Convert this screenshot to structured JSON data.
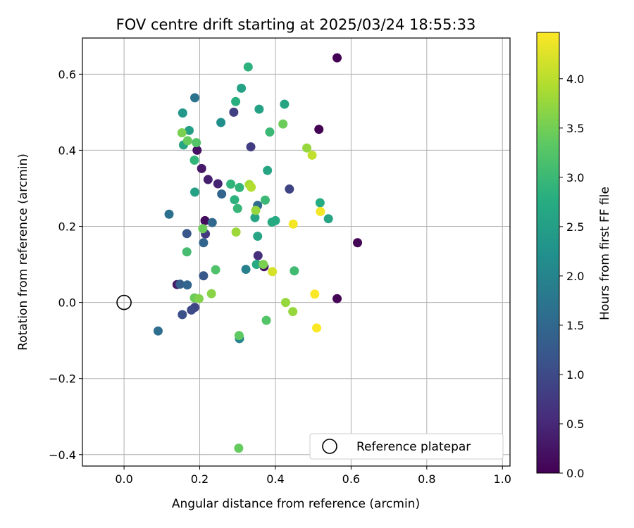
{
  "chart_data": {
    "type": "scatter",
    "title": "FOV centre drift starting at 2025/03/24 18:55:33",
    "xlabel": "Angular distance from reference (arcmin)",
    "ylabel": "Rotation from reference (arcmin)",
    "xlim": [
      -0.11,
      1.02
    ],
    "ylim": [
      -0.43,
      0.695
    ],
    "xticks": [
      0.0,
      0.2,
      0.4,
      0.6,
      0.8,
      1.0
    ],
    "xtick_labels": [
      "0.0",
      "0.2",
      "0.4",
      "0.6",
      "0.8",
      "1.0"
    ],
    "yticks": [
      -0.4,
      -0.2,
      0.0,
      0.2,
      0.4,
      0.6
    ],
    "ytick_labels": [
      "−0.4",
      "−0.2",
      "0.0",
      "0.2",
      "0.4",
      "0.6"
    ],
    "grid": true,
    "legend": {
      "position": "lower-right",
      "entries": [
        {
          "label": "Reference platepar",
          "marker": "open-circle"
        }
      ]
    },
    "reference_point": {
      "x": 0.0,
      "y": 0.0
    },
    "colorbar": {
      "label": "Hours from first FF file",
      "colormap": "viridis",
      "range": [
        0.0,
        4.47
      ],
      "ticks": [
        0.0,
        0.5,
        1.0,
        1.5,
        2.0,
        2.5,
        3.0,
        3.5,
        4.0
      ],
      "tick_labels": [
        "0.0",
        "0.5",
        "1.0",
        "1.5",
        "2.0",
        "2.5",
        "3.0",
        "3.5",
        "4.0"
      ]
    },
    "points": [
      {
        "x": 0.563,
        "y": 0.643,
        "h": 0.0
      },
      {
        "x": 0.515,
        "y": 0.455,
        "h": 0.0
      },
      {
        "x": 0.617,
        "y": 0.157,
        "h": 0.05
      },
      {
        "x": 0.563,
        "y": 0.01,
        "h": 0.05
      },
      {
        "x": 0.193,
        "y": 0.4,
        "h": 0.2
      },
      {
        "x": 0.205,
        "y": 0.352,
        "h": 0.3
      },
      {
        "x": 0.222,
        "y": 0.323,
        "h": 0.4
      },
      {
        "x": 0.248,
        "y": 0.312,
        "h": 0.45
      },
      {
        "x": 0.214,
        "y": 0.215,
        "h": 0.15
      },
      {
        "x": 0.37,
        "y": 0.094,
        "h": 0.2
      },
      {
        "x": 0.14,
        "y": 0.047,
        "h": 0.3
      },
      {
        "x": 0.354,
        "y": 0.123,
        "h": 0.6
      },
      {
        "x": 0.335,
        "y": 0.409,
        "h": 0.8
      },
      {
        "x": 0.29,
        "y": 0.5,
        "h": 0.85
      },
      {
        "x": 0.437,
        "y": 0.298,
        "h": 0.9
      },
      {
        "x": 0.215,
        "y": 0.18,
        "h": 0.75
      },
      {
        "x": 0.187,
        "y": -0.013,
        "h": 0.9
      },
      {
        "x": 0.178,
        "y": -0.02,
        "h": 1.0
      },
      {
        "x": 0.154,
        "y": -0.032,
        "h": 1.1
      },
      {
        "x": 0.166,
        "y": 0.181,
        "h": 1.2
      },
      {
        "x": 0.21,
        "y": 0.07,
        "h": 1.2
      },
      {
        "x": 0.148,
        "y": 0.048,
        "h": 1.35
      },
      {
        "x": 0.167,
        "y": 0.046,
        "h": 1.45
      },
      {
        "x": 0.258,
        "y": 0.285,
        "h": 1.45
      },
      {
        "x": 0.233,
        "y": 0.21,
        "h": 1.5
      },
      {
        "x": 0.21,
        "y": 0.157,
        "h": 1.45
      },
      {
        "x": 0.09,
        "y": -0.075,
        "h": 1.6
      },
      {
        "x": 0.119,
        "y": 0.232,
        "h": 1.65
      },
      {
        "x": 0.187,
        "y": 0.538,
        "h": 1.7
      },
      {
        "x": 0.353,
        "y": 0.255,
        "h": 1.55
      },
      {
        "x": 0.322,
        "y": 0.087,
        "h": 1.95
      },
      {
        "x": 0.305,
        "y": -0.095,
        "h": 2.0
      },
      {
        "x": 0.256,
        "y": 0.473,
        "h": 2.2
      },
      {
        "x": 0.155,
        "y": 0.498,
        "h": 2.35
      },
      {
        "x": 0.172,
        "y": 0.452,
        "h": 2.5
      },
      {
        "x": 0.157,
        "y": 0.414,
        "h": 2.6
      },
      {
        "x": 0.187,
        "y": 0.29,
        "h": 2.55
      },
      {
        "x": 0.31,
        "y": 0.563,
        "h": 2.55
      },
      {
        "x": 0.357,
        "y": 0.508,
        "h": 2.55
      },
      {
        "x": 0.424,
        "y": 0.521,
        "h": 2.6
      },
      {
        "x": 0.379,
        "y": 0.347,
        "h": 2.6
      },
      {
        "x": 0.346,
        "y": 0.223,
        "h": 2.6
      },
      {
        "x": 0.353,
        "y": 0.174,
        "h": 2.6
      },
      {
        "x": 0.35,
        "y": 0.1,
        "h": 2.7
      },
      {
        "x": 0.391,
        "y": 0.211,
        "h": 2.7
      },
      {
        "x": 0.4,
        "y": 0.215,
        "h": 2.7
      },
      {
        "x": 0.54,
        "y": 0.22,
        "h": 2.6
      },
      {
        "x": 0.518,
        "y": 0.262,
        "h": 2.75
      },
      {
        "x": 0.295,
        "y": 0.528,
        "h": 2.8
      },
      {
        "x": 0.328,
        "y": 0.619,
        "h": 2.85
      },
      {
        "x": 0.186,
        "y": 0.374,
        "h": 2.9
      },
      {
        "x": 0.282,
        "y": 0.311,
        "h": 2.9
      },
      {
        "x": 0.305,
        "y": 0.302,
        "h": 2.9
      },
      {
        "x": 0.292,
        "y": 0.27,
        "h": 2.85
      },
      {
        "x": 0.3,
        "y": 0.247,
        "h": 2.95
      },
      {
        "x": 0.373,
        "y": 0.269,
        "h": 3.0
      },
      {
        "x": 0.385,
        "y": 0.448,
        "h": 3.0
      },
      {
        "x": 0.45,
        "y": 0.083,
        "h": 3.05
      },
      {
        "x": 0.166,
        "y": 0.133,
        "h": 3.1
      },
      {
        "x": 0.242,
        "y": 0.086,
        "h": 3.2
      },
      {
        "x": 0.191,
        "y": 0.42,
        "h": 3.25
      },
      {
        "x": 0.376,
        "y": -0.047,
        "h": 3.25
      },
      {
        "x": 0.304,
        "y": -0.087,
        "h": 3.35
      },
      {
        "x": 0.303,
        "y": -0.383,
        "h": 3.4
      },
      {
        "x": 0.168,
        "y": 0.425,
        "h": 3.4
      },
      {
        "x": 0.208,
        "y": 0.194,
        "h": 3.45
      },
      {
        "x": 0.186,
        "y": 0.012,
        "h": 3.45
      },
      {
        "x": 0.198,
        "y": 0.01,
        "h": 3.6
      },
      {
        "x": 0.231,
        "y": 0.023,
        "h": 3.65
      },
      {
        "x": 0.153,
        "y": 0.446,
        "h": 3.55
      },
      {
        "x": 0.42,
        "y": 0.469,
        "h": 3.45
      },
      {
        "x": 0.368,
        "y": 0.1,
        "h": 3.55
      },
      {
        "x": 0.427,
        "y": 0.0,
        "h": 3.75
      },
      {
        "x": 0.446,
        "y": -0.024,
        "h": 3.75
      },
      {
        "x": 0.296,
        "y": 0.185,
        "h": 3.8
      },
      {
        "x": 0.348,
        "y": 0.242,
        "h": 3.75
      },
      {
        "x": 0.331,
        "y": 0.31,
        "h": 3.85
      },
      {
        "x": 0.336,
        "y": 0.303,
        "h": 3.95
      },
      {
        "x": 0.483,
        "y": 0.406,
        "h": 3.75
      },
      {
        "x": 0.497,
        "y": 0.387,
        "h": 4.05
      },
      {
        "x": 0.392,
        "y": 0.081,
        "h": 4.2
      },
      {
        "x": 0.447,
        "y": 0.206,
        "h": 4.4
      },
      {
        "x": 0.519,
        "y": 0.239,
        "h": 4.4
      },
      {
        "x": 0.504,
        "y": 0.022,
        "h": 4.45
      },
      {
        "x": 0.509,
        "y": -0.067,
        "h": 4.45
      }
    ]
  }
}
